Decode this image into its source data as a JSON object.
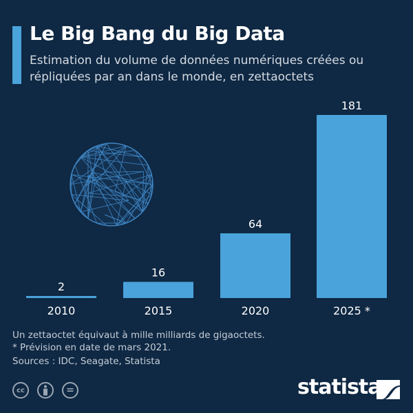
{
  "header": {
    "title": "Le Big Bang du Big Data",
    "subtitle": "Estimation du volume de données numériques créées ou répliquées par an dans le monde, en zettaoctets"
  },
  "chart_data": {
    "type": "bar",
    "categories": [
      "2010",
      "2015",
      "2020",
      "2025 *"
    ],
    "values": [
      2,
      16,
      64,
      181
    ],
    "data_labels": [
      "2",
      "16",
      "64",
      "181"
    ],
    "title": "Le Big Bang du Big Data",
    "ylabel": "",
    "xlabel": "",
    "ylim": [
      0,
      181
    ],
    "grid": false,
    "bar_color": "#4aa3db"
  },
  "footer": {
    "note1": "Un zettaoctet équivaut à mille milliards de gigaoctets.",
    "note2": "* Prévision en date de mars 2021.",
    "sources": "Sources : IDC, Seagate, Statista",
    "license_icons": [
      "cc-icon",
      "by-icon",
      "nd-icon"
    ],
    "cc_label": "cc",
    "nd_label": "=",
    "logo": "statista"
  },
  "colors": {
    "background": "#0f2843",
    "accent": "#4aa3db"
  }
}
